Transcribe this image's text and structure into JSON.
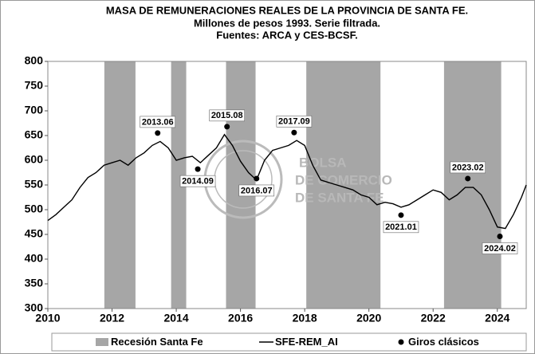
{
  "chart_data": {
    "type": "line",
    "title": "MASA DE REMUNERACIONES REALES DE LA PROVINCIA DE SANTA FE.",
    "subtitle": [
      "Millones de pesos 1993. Serie filtrada.",
      "Fuentes: ARCA y CES-BCSF."
    ],
    "watermark": [
      "BOLSA",
      "DE COMERCIO",
      "DE SANTA FE"
    ],
    "xlim": [
      2010,
      2024.9
    ],
    "xticks": [
      2010,
      2012,
      2014,
      2016,
      2018,
      2020,
      2022,
      2024
    ],
    "ylim": [
      300,
      800
    ],
    "yticks": [
      300,
      350,
      400,
      450,
      500,
      550,
      600,
      650,
      700,
      750,
      800
    ],
    "grid": false,
    "legend": "bottom",
    "series": [
      {
        "name": "Recesión Santa Fe",
        "color": "#a6a6a6",
        "spans": [
          [
            2011.76,
            2012.73
          ],
          [
            2013.84,
            2014.31
          ],
          [
            2015.55,
            2016.47
          ],
          [
            2018.05,
            2020.36
          ],
          [
            2022.34,
            2024.12
          ]
        ]
      },
      {
        "name": "SFE-REM_AI",
        "color": "#000000",
        "x": [
          2010,
          2010.25,
          2010.5,
          2010.75,
          2011,
          2011.25,
          2011.5,
          2011.75,
          2012,
          2012.25,
          2012.5,
          2012.75,
          2013,
          2013.25,
          2013.5,
          2013.75,
          2014,
          2014.25,
          2014.5,
          2014.75,
          2015,
          2015.25,
          2015.5,
          2015.75,
          2016,
          2016.25,
          2016.5,
          2016.75,
          2017,
          2017.25,
          2017.5,
          2017.75,
          2018,
          2018.25,
          2018.5,
          2018.75,
          2019,
          2019.25,
          2019.5,
          2019.75,
          2020,
          2020.25,
          2020.5,
          2020.75,
          2021,
          2021.25,
          2021.5,
          2021.75,
          2022,
          2022.25,
          2022.5,
          2022.75,
          2023,
          2023.25,
          2023.5,
          2023.75,
          2024,
          2024.25,
          2024.5,
          2024.75,
          2024.9
        ],
        "values": [
          478,
          490,
          505,
          520,
          545,
          565,
          575,
          590,
          595,
          600,
          590,
          605,
          615,
          630,
          638,
          625,
          600,
          605,
          608,
          595,
          610,
          625,
          652,
          630,
          598,
          575,
          560,
          600,
          620,
          625,
          630,
          640,
          630,
          590,
          560,
          555,
          550,
          545,
          540,
          530,
          525,
          510,
          515,
          512,
          505,
          510,
          520,
          530,
          540,
          535,
          520,
          530,
          545,
          545,
          530,
          500,
          465,
          462,
          490,
          525,
          550
        ]
      },
      {
        "name": "Giros clásicos",
        "color": "#000000",
        "x": [
          2013.42,
          2014.67,
          2015.58,
          2016.5,
          2017.67,
          2021.0,
          2023.08,
          2024.08
        ],
        "values": [
          655,
          582,
          668,
          563,
          656,
          489,
          563,
          446
        ],
        "labels": [
          "2013.06",
          "2014.09",
          "2015.08",
          "2016.07",
          "2017.09",
          "2021.01",
          "2023.02",
          "2024.02"
        ]
      }
    ]
  }
}
